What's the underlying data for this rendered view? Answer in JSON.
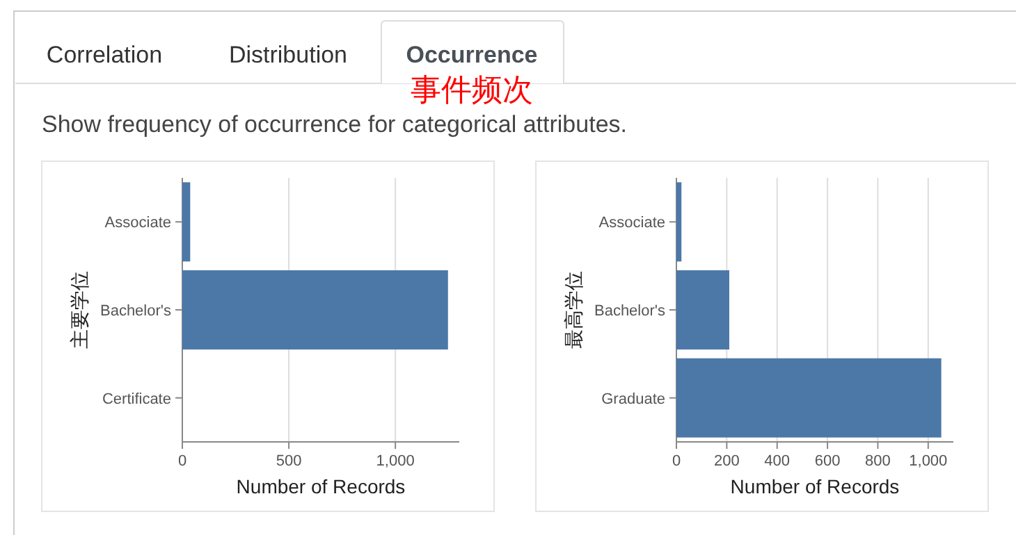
{
  "chart_data": [
    {
      "type": "other",
      "title": "Show frequency of occurrence for categorical attributes.",
      "annotations": [
        "Correlation",
        "Distribution",
        "Occurrence",
        "事件频次"
      ]
    },
    {
      "type": "bar",
      "orientation": "horizontal",
      "ylabel": "主要学位",
      "xlabel": "Number of Records",
      "categories": [
        "Associate",
        "Bachelor's",
        "Certificate"
      ],
      "values": [
        37,
        1247,
        null
      ],
      "color": "#4c78a8",
      "xlim": [
        0,
        1300
      ],
      "xticks": [
        0,
        500,
        {
          "value": 1000,
          "label": "1,000"
        }
      ],
      "grid": "x"
    },
    {
      "type": "bar",
      "orientation": "horizontal",
      "ylabel": "最高学位",
      "xlabel": "Number of Records",
      "categories": [
        "Associate",
        "Bachelor's",
        "Graduate"
      ],
      "values": [
        20,
        210,
        1052
      ],
      "color": "#4c78a8",
      "xlim": [
        0,
        1100
      ],
      "xticks": [
        0,
        200,
        400,
        600,
        800,
        {
          "value": 1000,
          "label": "1,000"
        }
      ],
      "grid": "x"
    }
  ]
}
